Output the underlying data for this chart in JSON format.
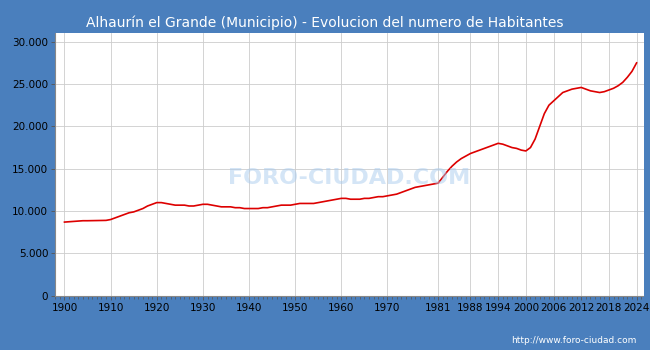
{
  "title": "Alhaurín el Grande (Municipio) - Evolucion del numero de Habitantes",
  "title_color": "white",
  "outer_bg_color": "#4a7fbd",
  "plot_bg_color": "#ffffff",
  "line_color": "#dd0000",
  "line_width": 1.2,
  "watermark": "FORO-CIUDAD.COM",
  "url": "http://www.foro-ciudad.com",
  "years_all": [
    1900,
    1901,
    1902,
    1903,
    1904,
    1905,
    1906,
    1907,
    1908,
    1909,
    1910,
    1911,
    1912,
    1913,
    1914,
    1915,
    1916,
    1917,
    1918,
    1919,
    1920,
    1921,
    1922,
    1923,
    1924,
    1925,
    1926,
    1927,
    1928,
    1929,
    1930,
    1931,
    1932,
    1933,
    1934,
    1935,
    1936,
    1937,
    1938,
    1939,
    1940,
    1941,
    1942,
    1943,
    1944,
    1945,
    1946,
    1947,
    1948,
    1949,
    1950,
    1951,
    1952,
    1953,
    1954,
    1955,
    1956,
    1957,
    1958,
    1959,
    1960,
    1961,
    1962,
    1963,
    1964,
    1965,
    1966,
    1967,
    1968,
    1969,
    1970,
    1971,
    1972,
    1973,
    1974,
    1975,
    1976,
    1977,
    1978,
    1979,
    1980,
    1981,
    1982,
    1983,
    1984,
    1985,
    1986,
    1987,
    1988,
    1989,
    1990,
    1991,
    1992,
    1993,
    1994,
    1995,
    1996,
    1997,
    1998,
    1999,
    2000,
    2001,
    2002,
    2003,
    2004,
    2005,
    2006,
    2007,
    2008,
    2009,
    2010,
    2011,
    2012,
    2013,
    2014,
    2015,
    2016,
    2017,
    2018,
    2019,
    2020,
    2021,
    2022,
    2023,
    2024
  ],
  "pop_all": [
    8700,
    8740,
    8780,
    8820,
    8860,
    8860,
    8870,
    8880,
    8890,
    8900,
    9000,
    9200,
    9400,
    9600,
    9800,
    9900,
    10100,
    10300,
    10600,
    10800,
    11000,
    11000,
    10900,
    10800,
    10700,
    10700,
    10700,
    10600,
    10600,
    10700,
    10800,
    10800,
    10700,
    10600,
    10500,
    10500,
    10500,
    10400,
    10400,
    10300,
    10300,
    10300,
    10300,
    10400,
    10400,
    10500,
    10600,
    10700,
    10700,
    10700,
    10800,
    10900,
    10900,
    10900,
    10900,
    11000,
    11100,
    11200,
    11300,
    11400,
    11500,
    11500,
    11400,
    11400,
    11400,
    11500,
    11500,
    11600,
    11700,
    11700,
    11800,
    11900,
    12000,
    12200,
    12400,
    12600,
    12800,
    12900,
    13000,
    13100,
    13200,
    13300,
    14000,
    14700,
    15300,
    15800,
    16200,
    16500,
    16800,
    17000,
    17200,
    17400,
    17600,
    17800,
    18000,
    17900,
    17700,
    17500,
    17400,
    17200,
    17100,
    17500,
    18500,
    20000,
    21500,
    22500,
    23000,
    23500,
    24000,
    24200,
    24400,
    24500,
    24600,
    24400,
    24200,
    24100,
    24000,
    24100,
    24300,
    24500,
    24800,
    25200,
    25800,
    26500,
    27500
  ],
  "xtick_labels": [
    "1900",
    "1910",
    "1920",
    "1930",
    "1940",
    "1950",
    "1960",
    "1970",
    "1981",
    "1988",
    "1994",
    "2000",
    "2006",
    "2012",
    "2018",
    "2024"
  ],
  "xtick_pos": [
    1900,
    1910,
    1920,
    1930,
    1940,
    1950,
    1960,
    1970,
    1981,
    1988,
    1994,
    2000,
    2006,
    2012,
    2018,
    2024
  ],
  "ylim": [
    0,
    31000
  ],
  "yticks": [
    0,
    5000,
    10000,
    15000,
    20000,
    25000,
    30000
  ],
  "xlim": [
    1898,
    2025.5
  ],
  "grid_color": "#cccccc",
  "title_fontsize": 10,
  "tick_fontsize": 7.5,
  "url_fontsize": 6.5
}
